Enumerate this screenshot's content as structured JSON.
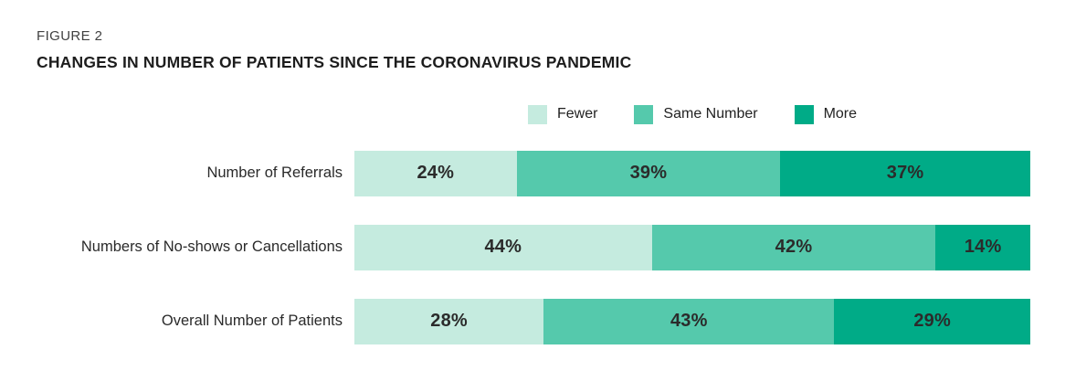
{
  "figure_label": "FIGURE 2",
  "title": "CHANGES IN NUMBER OF PATIENTS SINCE THE CORONAVIRUS PANDEMIC",
  "colors": {
    "fewer": "#c5ebdf",
    "same_number": "#55c9ac",
    "more": "#00ab87",
    "title_text": "#1d1d1d",
    "figure_label_text": "#414141",
    "value_text": "#2b2b2b"
  },
  "chart_data": {
    "type": "bar",
    "orientation": "horizontal",
    "stacked": true,
    "title": "Changes in Number of Patients Since the Coronavirus Pandemic",
    "categories": [
      "Number of Referrals",
      "Numbers of  No-shows or Cancellations",
      "Overall Number of Patients"
    ],
    "series": [
      {
        "name": "Fewer",
        "color": "#c5ebdf",
        "values": [
          24,
          44,
          28
        ]
      },
      {
        "name": "Same Number",
        "color": "#55c9ac",
        "values": [
          39,
          42,
          43
        ]
      },
      {
        "name": "More",
        "color": "#00ab87",
        "values": [
          37,
          14,
          29
        ]
      }
    ],
    "value_suffix": "%",
    "xlim": [
      0,
      100
    ],
    "grid": false,
    "legend_position": "top-center",
    "data_labels": "inside-center"
  }
}
